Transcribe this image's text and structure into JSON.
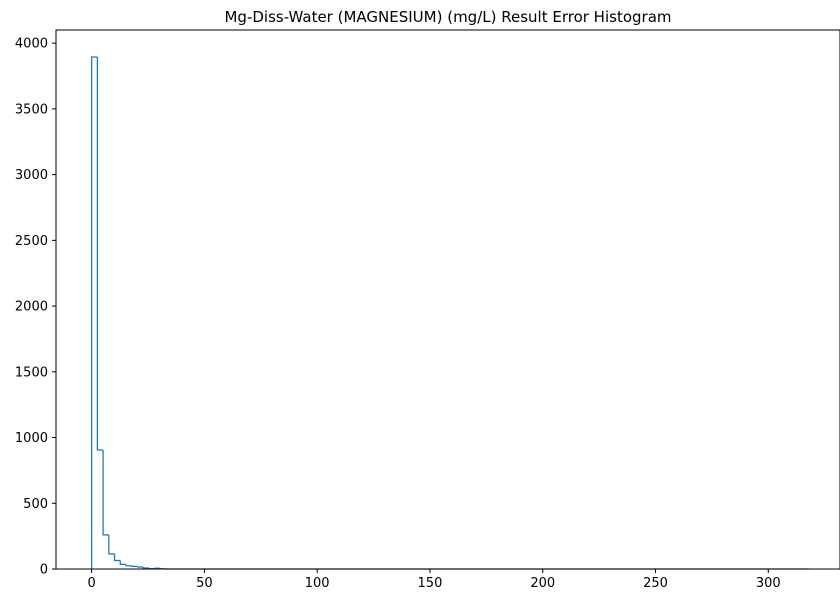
{
  "chart_data": {
    "type": "histogram",
    "title": "Mg-Diss-Water (MAGNESIUM) (mg/L) Result Error Histogram",
    "xlabel": "",
    "ylabel": "",
    "xlim": [
      -15.8,
      331.8
    ],
    "ylim": [
      0,
      4100
    ],
    "xticks": [
      0,
      50,
      100,
      150,
      200,
      250,
      300
    ],
    "yticks": [
      0,
      500,
      1000,
      1500,
      2000,
      2500,
      3000,
      3500,
      4000
    ],
    "bin_width": 2.54,
    "bin_start": 0,
    "bin_end": 318,
    "bins": [
      {
        "x0": 0.0,
        "x1": 2.54,
        "count": 3895
      },
      {
        "x0": 2.54,
        "x1": 5.08,
        "count": 905
      },
      {
        "x0": 5.08,
        "x1": 7.62,
        "count": 260
      },
      {
        "x0": 7.62,
        "x1": 10.16,
        "count": 115
      },
      {
        "x0": 10.16,
        "x1": 12.7,
        "count": 65
      },
      {
        "x0": 12.7,
        "x1": 15.24,
        "count": 35
      },
      {
        "x0": 15.24,
        "x1": 17.78,
        "count": 25
      },
      {
        "x0": 17.78,
        "x1": 20.32,
        "count": 20
      },
      {
        "x0": 20.32,
        "x1": 22.86,
        "count": 15
      },
      {
        "x0": 22.86,
        "x1": 25.4,
        "count": 8
      },
      {
        "x0": 25.4,
        "x1": 27.94,
        "count": 3
      },
      {
        "x0": 27.94,
        "x1": 30.48,
        "count": 6
      },
      {
        "x0": 30.48,
        "x1": 33.02,
        "count": 2
      }
    ],
    "grid": false,
    "histtype": "step",
    "color": "#1f77b4"
  }
}
